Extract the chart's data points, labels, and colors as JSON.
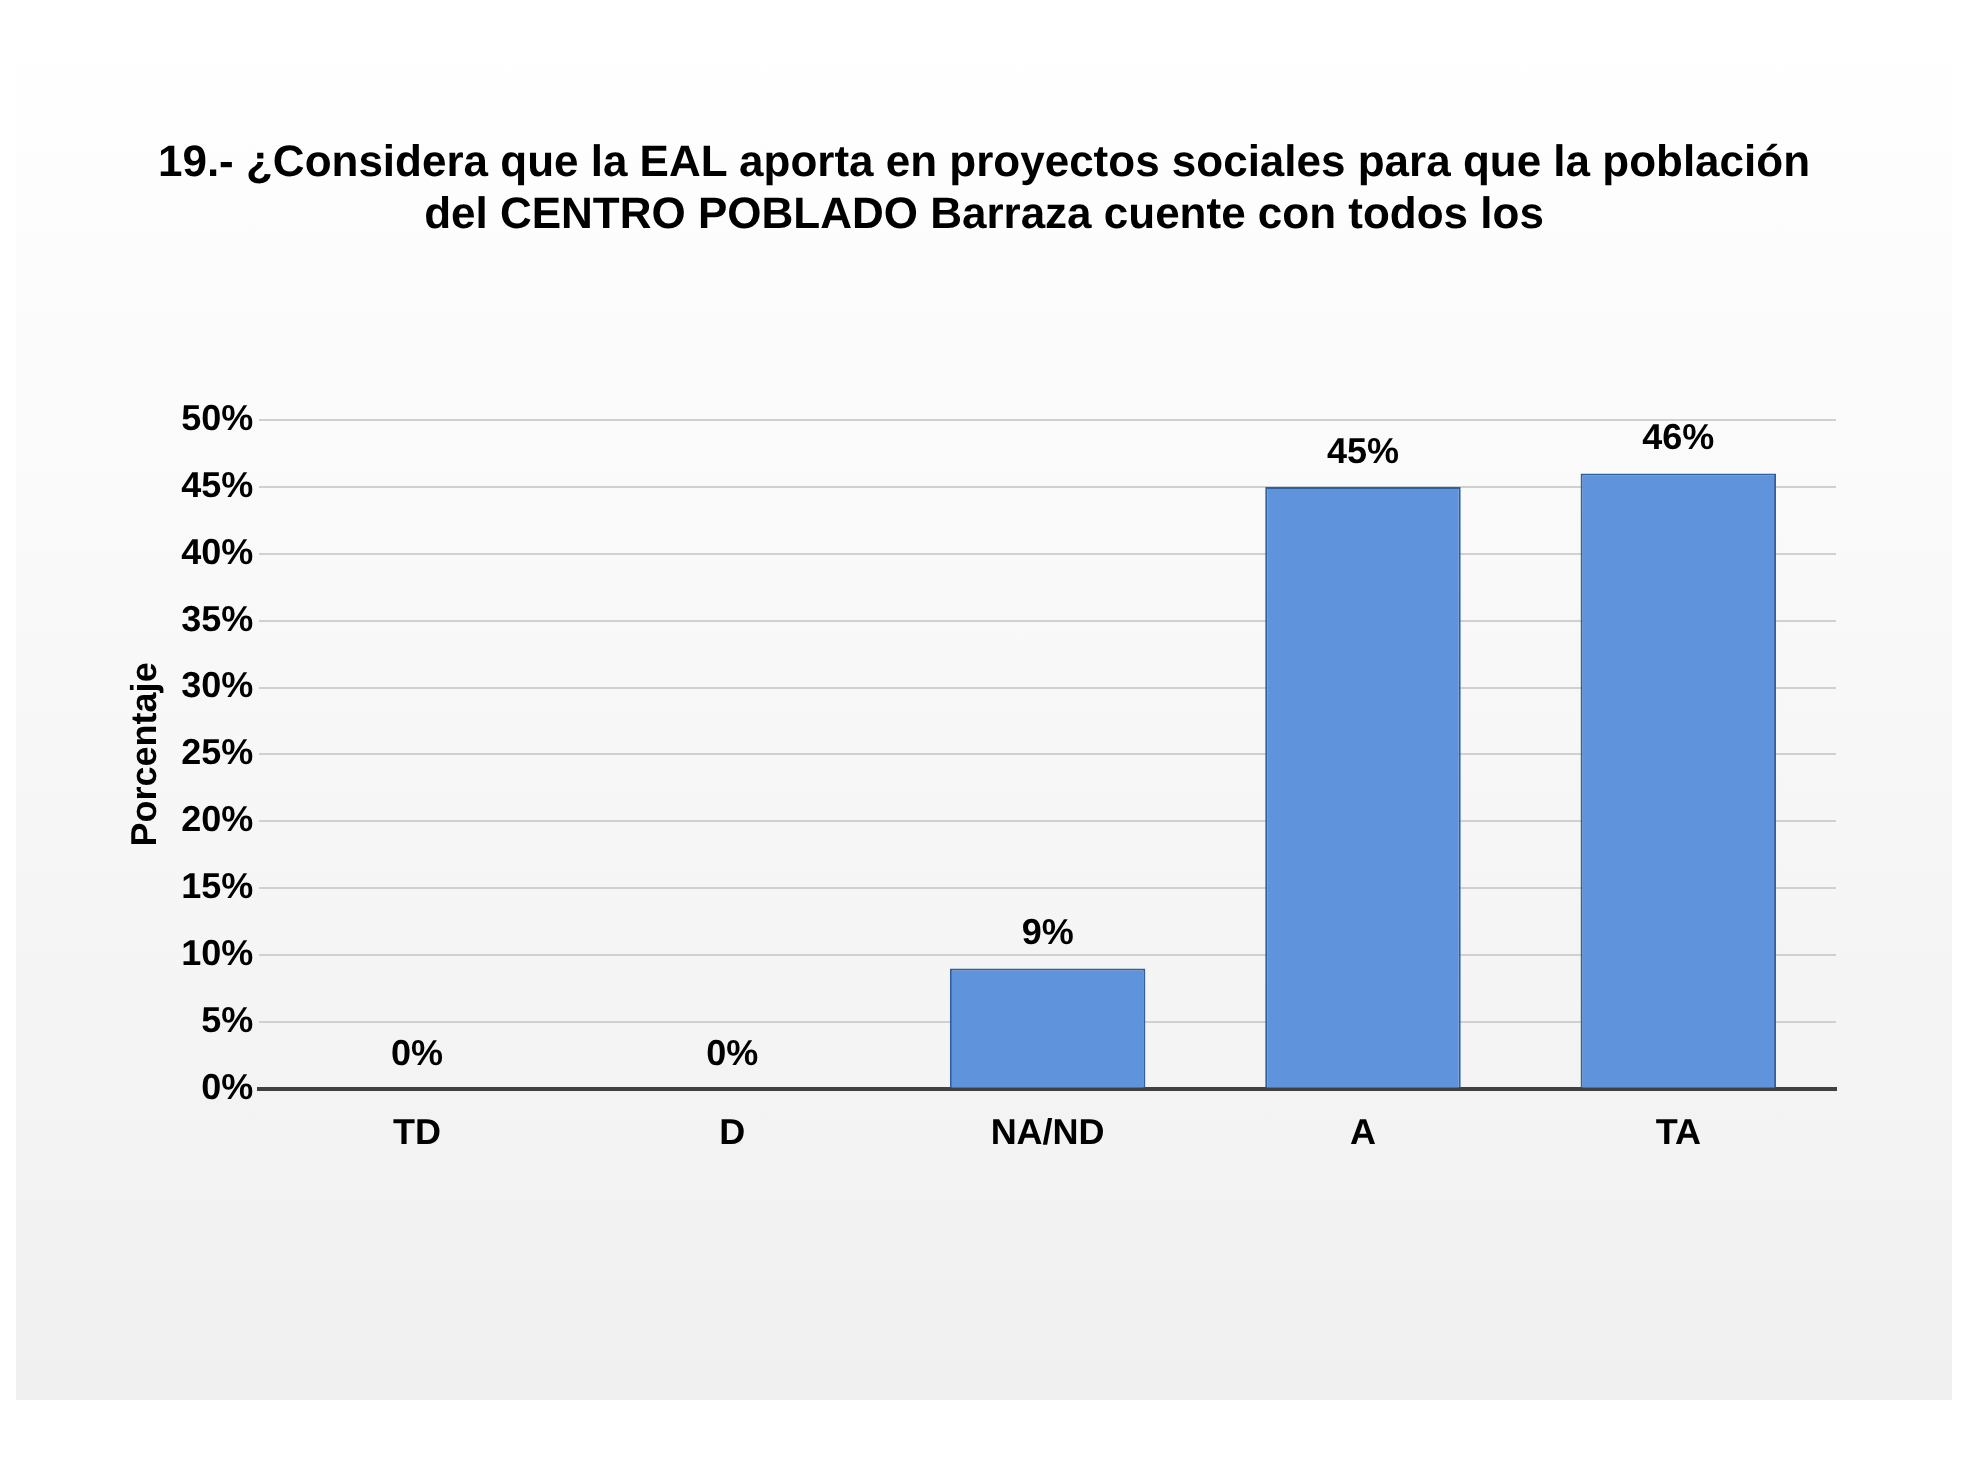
{
  "chart_data": {
    "type": "bar",
    "title": "19.- ¿Considera que la EAL aporta en proyectos sociales para que la población del CENTRO POBLADO Barraza cuente con todos los",
    "ylabel": "Porcentaje",
    "categories": [
      "TD",
      "D",
      "NA/ND",
      "A",
      "TA"
    ],
    "values": [
      0,
      0,
      9,
      45,
      46
    ],
    "value_labels": [
      "0%",
      "0%",
      "9%",
      "45%",
      "46%"
    ],
    "color": "#5f93dc",
    "ylim": [
      0,
      50
    ],
    "yticks": [
      {
        "value": 0,
        "label": "0%"
      },
      {
        "value": 5,
        "label": "5%"
      },
      {
        "value": 10,
        "label": "10%"
      },
      {
        "value": 15,
        "label": "15%"
      },
      {
        "value": 20,
        "label": "20%"
      },
      {
        "value": 25,
        "label": "25%"
      },
      {
        "value": 30,
        "label": "30%"
      },
      {
        "value": 35,
        "label": "35%"
      },
      {
        "value": 40,
        "label": "40%"
      },
      {
        "value": 45,
        "label": "45%"
      },
      {
        "value": 50,
        "label": "50%"
      }
    ],
    "grid": "y"
  }
}
